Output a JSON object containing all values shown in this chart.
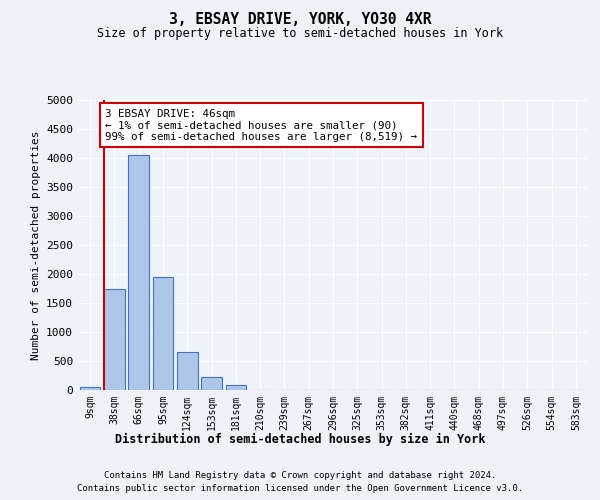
{
  "title1": "3, EBSAY DRIVE, YORK, YO30 4XR",
  "title2": "Size of property relative to semi-detached houses in York",
  "xlabel": "Distribution of semi-detached houses by size in York",
  "ylabel": "Number of semi-detached properties",
  "bar_labels": [
    "9sqm",
    "38sqm",
    "66sqm",
    "95sqm",
    "124sqm",
    "153sqm",
    "181sqm",
    "210sqm",
    "239sqm",
    "267sqm",
    "296sqm",
    "325sqm",
    "353sqm",
    "382sqm",
    "411sqm",
    "440sqm",
    "468sqm",
    "497sqm",
    "526sqm",
    "554sqm",
    "583sqm"
  ],
  "bar_values": [
    50,
    1750,
    4050,
    1950,
    650,
    230,
    90,
    0,
    0,
    0,
    0,
    0,
    0,
    0,
    0,
    0,
    0,
    0,
    0,
    0,
    0
  ],
  "bar_color": "#aec6e8",
  "bar_edge_color": "#4472c4",
  "vline_x": 0.57,
  "annotation_text": "3 EBSAY DRIVE: 46sqm\n← 1% of semi-detached houses are smaller (90)\n99% of semi-detached houses are larger (8,519) →",
  "annotation_box_color": "#ffffff",
  "annotation_box_edge": "#cc0000",
  "vline_color": "#cc0000",
  "ylim": [
    0,
    5000
  ],
  "yticks": [
    0,
    500,
    1000,
    1500,
    2000,
    2500,
    3000,
    3500,
    4000,
    4500,
    5000
  ],
  "footer1": "Contains HM Land Registry data © Crown copyright and database right 2024.",
  "footer2": "Contains public sector information licensed under the Open Government Licence v3.0.",
  "background_color": "#eef2f9",
  "grid_color": "#ffffff"
}
